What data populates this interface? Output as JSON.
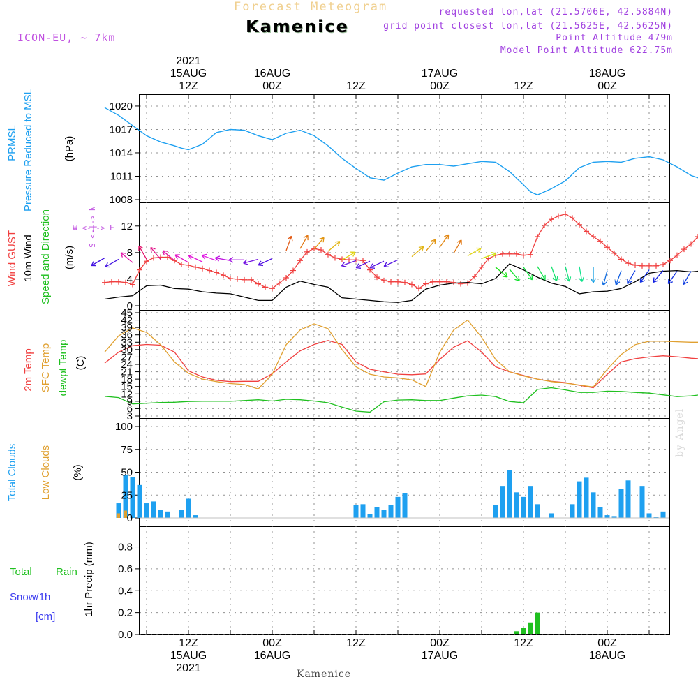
{
  "header": {
    "title": "Forecast Meteogram",
    "location": "Kamenice",
    "model": "ICON-EU, ~ 7km",
    "requested": "requested lon,lat (21.5706E, 42.5884N)",
    "grid_point": "grid point closest lon,lat (21.5625E, 42.5625N)",
    "point_altitude": "Point Altitude 479m",
    "model_point_altitude": "Model Point Altitude 622.75m",
    "watermark": "by Angel",
    "bottom_location": "Kamenice"
  },
  "colors": {
    "title": "#f0d090",
    "model": "#c050e0",
    "info": "#a040e0",
    "pressure": "#1ea0f0",
    "wind_gust": "#f04040",
    "wind": "#000000",
    "t2m": "#f04040",
    "sfc": "#e0a030",
    "dewpt": "#20c020",
    "total_cloud": "#1ea0f0",
    "low_cloud": "#e0a030",
    "rain": "#20c020",
    "snow": "#4040f0",
    "grid": "#909090"
  },
  "top_axis": {
    "labels": [
      {
        "h": 12,
        "lines": [
          "2021",
          "15AUG",
          "12Z"
        ]
      },
      {
        "h": 24,
        "lines": [
          "16AUG",
          "00Z"
        ]
      },
      {
        "h": 36,
        "lines": [
          "12Z"
        ]
      },
      {
        "h": 48,
        "lines": [
          "17AUG",
          "00Z"
        ]
      },
      {
        "h": 60,
        "lines": [
          "12Z"
        ]
      },
      {
        "h": 72,
        "lines": [
          "18AUG",
          "00Z"
        ]
      }
    ]
  },
  "bottom_axis": {
    "labels": [
      {
        "h": 12,
        "lines": [
          "12Z",
          "15AUG",
          "2021"
        ]
      },
      {
        "h": 24,
        "lines": [
          "00Z",
          "16AUG"
        ]
      },
      {
        "h": 36,
        "lines": [
          "12Z"
        ]
      },
      {
        "h": 48,
        "lines": [
          "00Z",
          "17AUG"
        ]
      },
      {
        "h": 60,
        "lines": [
          "12Z"
        ]
      },
      {
        "h": 72,
        "lines": [
          "00Z",
          "18AUG"
        ]
      }
    ]
  },
  "panel_labels": {
    "pressure": [
      "PRMSL",
      "Pressure Reduced to MSL",
      "(hPa)"
    ],
    "wind": [
      "Wind GUST",
      "10m Wind",
      "Speed and Direction",
      "(m/s)"
    ],
    "compass": {
      "w": "W",
      "e": "E",
      "n": "N",
      "s": "S",
      "arrow": "<-|->"
    },
    "temp": [
      "2m Temp",
      "SFC Temp",
      "dewpt Temp",
      "(C)"
    ],
    "clouds": [
      "Total Clouds",
      "Low Clouds",
      "(%)"
    ],
    "precip": [
      "Total",
      "Rain",
      "Snow/1h",
      "[cm]",
      "1hr Precip (mm)"
    ]
  },
  "chart_data": [
    {
      "type": "line",
      "panel": "pressure",
      "unit": "hPa",
      "x_unit": "hours from 15AUG 00Z",
      "yticks": [
        1008,
        1011,
        1014,
        1017,
        1020
      ],
      "ylim": [
        1008,
        1020.8
      ],
      "series": [
        {
          "name": "PRMSL",
          "x": [
            0,
            2,
            4,
            6,
            8,
            10,
            11,
            12,
            14,
            16,
            18,
            20,
            22,
            24,
            26,
            28,
            30,
            32,
            34,
            36,
            38,
            40,
            42,
            44,
            46,
            48,
            50,
            52,
            54,
            56,
            58,
            60,
            61,
            62,
            64,
            66,
            68,
            70,
            72,
            74,
            76,
            78,
            80,
            82,
            84,
            85
          ],
          "values": [
            1019.8,
            1018.8,
            1017.5,
            1016.2,
            1015.4,
            1014.9,
            1014.6,
            1014.4,
            1015.1,
            1016.6,
            1017.0,
            1016.9,
            1016.2,
            1015.7,
            1016.5,
            1016.9,
            1016.2,
            1014.9,
            1013.3,
            1012.0,
            1010.8,
            1010.5,
            1011.4,
            1012.2,
            1012.5,
            1012.5,
            1012.3,
            1012.6,
            1012.9,
            1012.8,
            1011.6,
            1009.9,
            1009.0,
            1008.6,
            1009.4,
            1010.4,
            1012.1,
            1012.8,
            1012.9,
            1012.8,
            1013.3,
            1013.5,
            1013.1,
            1012.2,
            1011.1,
            1010.8
          ]
        }
      ]
    },
    {
      "type": "line",
      "panel": "wind",
      "unit": "m/s",
      "yticks": [
        0,
        4,
        8,
        12
      ],
      "ylim": [
        0,
        14.5
      ],
      "series": [
        {
          "name": "Wind GUST",
          "x": [
            0,
            1,
            2,
            3,
            4,
            5,
            6,
            7,
            8,
            9,
            10,
            11,
            12,
            13,
            14,
            15,
            16,
            17,
            18,
            19,
            20,
            21,
            22,
            23,
            24,
            25,
            26,
            27,
            28,
            29,
            30,
            31,
            32,
            33,
            34,
            35,
            36,
            37,
            38,
            39,
            40,
            41,
            42,
            43,
            44,
            45,
            46,
            47,
            48,
            49,
            50,
            51,
            52,
            53,
            54,
            55,
            56,
            57,
            58,
            59,
            60,
            61,
            62,
            63,
            64,
            65,
            66,
            67,
            68,
            69,
            70,
            71,
            72,
            73,
            74,
            75,
            76,
            77,
            78,
            79,
            80,
            81,
            82,
            83,
            84,
            85
          ],
          "values": [
            3.5,
            3.6,
            3.6,
            3.5,
            3.2,
            5.4,
            6.7,
            7.2,
            7.3,
            7.3,
            6.8,
            6.2,
            6.1,
            5.8,
            5.6,
            5.3,
            5.0,
            4.6,
            4.1,
            4.0,
            3.9,
            3.9,
            3.3,
            2.8,
            2.6,
            3.4,
            4.2,
            5.3,
            6.8,
            8.1,
            8.6,
            8.4,
            7.7,
            7.2,
            7.0,
            6.9,
            6.9,
            6.8,
            5.4,
            4.3,
            3.8,
            3.6,
            3.6,
            3.5,
            3.2,
            2.6,
            3.3,
            3.6,
            3.6,
            3.6,
            3.5,
            3.3,
            3.4,
            4.4,
            5.8,
            7.1,
            7.6,
            7.8,
            7.8,
            7.8,
            7.6,
            7.7,
            10.4,
            12.1,
            13.0,
            13.5,
            13.8,
            13.2,
            12.2,
            11.2,
            10.4,
            9.7,
            8.8,
            7.9,
            7.0,
            6.4,
            6.1,
            6.0,
            6.0,
            6.0,
            6.2,
            6.8,
            7.6,
            8.5,
            9.3,
            10.4
          ]
        },
        {
          "name": "10m Wind",
          "x": [
            0,
            2,
            4,
            6,
            8,
            10,
            12,
            14,
            16,
            18,
            20,
            22,
            24,
            26,
            28,
            30,
            32,
            34,
            36,
            38,
            40,
            42,
            44,
            46,
            48,
            50,
            52,
            54,
            56,
            58,
            60,
            62,
            64,
            66,
            68,
            70,
            72,
            74,
            76,
            78,
            80,
            82,
            84,
            85
          ],
          "values": [
            1.0,
            1.3,
            1.5,
            3.0,
            3.1,
            2.6,
            2.5,
            2.1,
            1.9,
            1.8,
            1.3,
            0.8,
            0.8,
            2.8,
            3.7,
            3.2,
            2.8,
            1.2,
            1.0,
            0.8,
            0.6,
            0.5,
            0.8,
            2.5,
            3.1,
            3.4,
            3.5,
            3.3,
            4.1,
            6.3,
            5.4,
            4.3,
            3.4,
            2.9,
            1.8,
            2.1,
            2.2,
            2.6,
            3.6,
            4.9,
            5.2,
            5.3,
            5.1,
            5.2
          ]
        }
      ]
    },
    {
      "type": "line",
      "panel": "temperature",
      "unit": "C",
      "yticks": [
        3,
        6,
        9,
        12,
        15,
        18,
        21,
        24,
        27,
        30,
        33,
        36,
        39,
        42,
        45
      ],
      "ylim": [
        3,
        45
      ],
      "series": [
        {
          "name": "2m Temp",
          "x": [
            0,
            2,
            4,
            6,
            8,
            10,
            12,
            14,
            16,
            18,
            20,
            22,
            24,
            26,
            28,
            30,
            32,
            34,
            36,
            38,
            40,
            42,
            44,
            46,
            48,
            50,
            52,
            54,
            56,
            58,
            60,
            62,
            64,
            66,
            68,
            70,
            72,
            74,
            76,
            78,
            80,
            82,
            84,
            85
          ],
          "values": [
            24.5,
            29.0,
            31.6,
            32.1,
            31.8,
            29.0,
            21.4,
            18.9,
            17.5,
            17.0,
            17.1,
            17.1,
            20.2,
            25.0,
            29.5,
            32.1,
            33.7,
            32.1,
            25.0,
            22.0,
            21.0,
            20.0,
            19.8,
            20.1,
            26.0,
            31.0,
            33.6,
            29.0,
            23.0,
            21.0,
            19.5,
            18.0,
            17.1,
            16.6,
            15.5,
            14.5,
            20.0,
            25.0,
            26.3,
            27.0,
            27.5,
            27.1,
            26.5,
            26.3
          ]
        },
        {
          "name": "SFC Temp",
          "x": [
            0,
            2,
            4,
            6,
            8,
            10,
            12,
            14,
            16,
            18,
            20,
            22,
            24,
            26,
            28,
            30,
            32,
            34,
            36,
            38,
            40,
            42,
            44,
            46,
            48,
            50,
            52,
            54,
            56,
            58,
            60,
            62,
            64,
            66,
            68,
            70,
            72,
            74,
            76,
            78,
            80,
            82,
            84,
            85
          ],
          "values": [
            29.0,
            35.6,
            38.8,
            37.0,
            32.0,
            25.0,
            20.4,
            18.0,
            17.0,
            16.2,
            15.8,
            14.0,
            20.0,
            32.0,
            38.0,
            40.5,
            38.5,
            30.0,
            23.0,
            20.0,
            18.9,
            18.5,
            17.7,
            15.0,
            29.0,
            38.0,
            42.0,
            35.0,
            26.0,
            21.0,
            19.3,
            18.0,
            17.0,
            16.4,
            15.6,
            14.8,
            22.0,
            28.0,
            32.0,
            33.4,
            33.4,
            33.2,
            33.0,
            33.0
          ]
        },
        {
          "name": "dewpt Temp",
          "x": [
            0,
            2,
            4,
            6,
            8,
            10,
            12,
            14,
            16,
            18,
            20,
            22,
            24,
            26,
            28,
            30,
            32,
            34,
            36,
            38,
            40,
            42,
            44,
            46,
            48,
            50,
            52,
            54,
            56,
            58,
            60,
            62,
            64,
            66,
            68,
            70,
            72,
            74,
            76,
            78,
            80,
            82,
            84,
            85
          ],
          "values": [
            11.0,
            10.5,
            7.9,
            8.2,
            8.5,
            8.6,
            8.9,
            9.0,
            9.0,
            9.0,
            9.3,
            9.6,
            9.1,
            9.8,
            9.6,
            9.1,
            8.4,
            6.6,
            5.0,
            4.6,
            8.8,
            9.5,
            9.6,
            9.3,
            9.3,
            10.3,
            11.2,
            11.5,
            10.9,
            8.9,
            8.4,
            13.8,
            14.5,
            13.6,
            12.6,
            12.6,
            13.1,
            13.0,
            12.6,
            12.3,
            11.6,
            10.9,
            11.2,
            11.5
          ]
        }
      ]
    },
    {
      "type": "bar",
      "panel": "clouds",
      "unit": "%",
      "yticks": [
        0,
        25,
        50,
        75,
        100
      ],
      "ylim": [
        0,
        100
      ],
      "series": [
        {
          "name": "Total Clouds",
          "x": [
            2,
            3,
            4,
            5,
            6,
            7,
            8,
            9,
            11,
            12,
            13,
            36,
            37,
            38,
            39,
            40,
            41,
            42,
            43,
            56,
            57,
            58,
            59,
            60,
            61,
            62,
            64,
            67,
            68,
            69,
            70,
            71,
            72,
            73,
            74,
            75,
            77,
            78,
            79,
            80
          ],
          "values": [
            16,
            47,
            45,
            36,
            16,
            18,
            9,
            7,
            9,
            21,
            3,
            14,
            15,
            4,
            12,
            9,
            14,
            23,
            27,
            14,
            35,
            52,
            28,
            23,
            35,
            15,
            5,
            15,
            40,
            44,
            28,
            12,
            3,
            2,
            32,
            41,
            35,
            5,
            1,
            7
          ]
        },
        {
          "name": "Low Clouds",
          "x": [
            2,
            3
          ],
          "values": [
            5,
            8
          ]
        }
      ]
    },
    {
      "type": "bar",
      "panel": "precip",
      "unit": "mm",
      "yticks": [
        0,
        0.2,
        0.4,
        0.6,
        0.8
      ],
      "ylim": [
        0,
        0.95
      ],
      "series": [
        {
          "name": "Total Rain",
          "x": [
            59,
            60,
            61,
            62
          ],
          "values": [
            0.03,
            0.06,
            0.11,
            0.2
          ]
        },
        {
          "name": "Snow/1h",
          "x": [],
          "values": []
        }
      ]
    },
    {
      "type": "arrows",
      "panel": "wind_direction",
      "x": [
        0,
        2,
        4,
        6,
        8,
        10,
        12,
        14,
        16,
        18,
        20,
        22,
        24,
        26,
        28,
        30,
        32,
        34,
        36,
        38,
        40,
        42,
        44,
        46,
        48,
        50,
        52,
        54,
        56,
        58,
        60,
        62,
        64,
        66,
        68,
        70,
        72,
        74,
        76,
        78,
        80,
        82,
        84
      ],
      "speed": [
        7.2,
        7.0,
        6.5,
        7.0,
        7.0,
        6.8,
        6.5,
        6.6,
        6.8,
        6.8,
        6.9,
        7.0,
        7.1,
        8.3,
        8.6,
        8.5,
        8.2,
        6.9,
        6.8,
        6.7,
        6.7,
        6.9,
        7.4,
        8.2,
        8.8,
        7.9,
        7.5,
        7.1,
        5.8,
        5.5,
        5.8,
        5.9,
        5.9,
        5.9,
        5.9,
        5.8,
        5.3,
        5.3,
        5.3,
        5.4,
        5.3,
        5.2,
        5.2
      ],
      "dir_deg": [
        60,
        60,
        130,
        150,
        140,
        130,
        120,
        115,
        110,
        100,
        90,
        75,
        65,
        200,
        210,
        220,
        230,
        240,
        70,
        65,
        65,
        65,
        230,
        220,
        215,
        210,
        240,
        250,
        310,
        320,
        325,
        330,
        340,
        345,
        350,
        0,
        15,
        20,
        30,
        35,
        40,
        35,
        30
      ]
    }
  ]
}
